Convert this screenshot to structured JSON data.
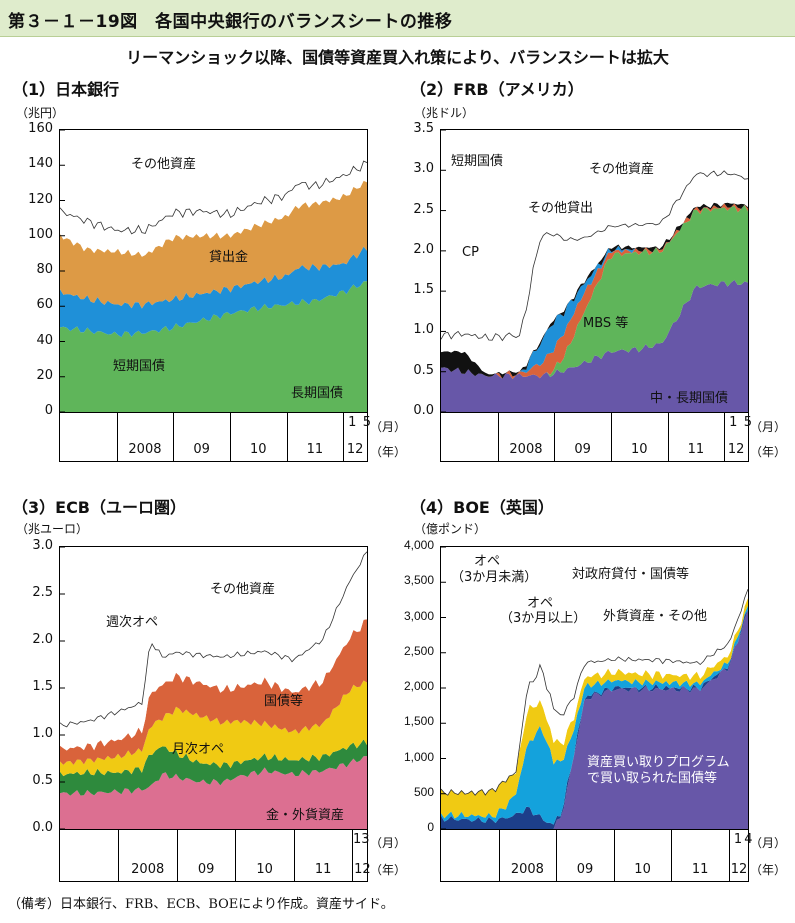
{
  "page": {
    "title": "第３－１－19図　各国中央銀行のバランスシートの推移",
    "subtitle": "リーマンショック以降、国債等資産買入れ策により、バランスシートは拡大",
    "note": "（備考）日本銀行、FRB、ECB、BOEにより作成。資産サイド。"
  },
  "colors": {
    "green": "#5fb55a",
    "blue": "#1f90d8",
    "orange": "#dd9a45",
    "black": "#111111",
    "red": "#d9633b",
    "purple": "#6757a8",
    "yellow": "#f0ca13",
    "dkgreen": "#2e8a3d",
    "pink": "#dc6f91",
    "navy": "#1d3f8a",
    "cyan": "#14a2dc"
  },
  "chart_data": [
    {
      "id": "boj",
      "type": "area",
      "title": "（1）日本銀行",
      "ylabel": "（兆円）",
      "ylim": [
        0,
        160
      ],
      "yticks": [
        "0",
        "20",
        "40",
        "60",
        "80",
        "100",
        "120",
        "140",
        "160"
      ],
      "x_start": 2007.0,
      "x_end": 2012.42,
      "year_labels": [
        "2008",
        "09",
        "10",
        "11",
        "12"
      ],
      "month_labels": [
        "1",
        "5"
      ],
      "month_unit": "（月）",
      "year_unit": "（年）",
      "x": [
        2007.0,
        2007.5,
        2008.0,
        2008.5,
        2009.0,
        2009.5,
        2010.0,
        2010.5,
        2011.0,
        2011.2,
        2011.5,
        2012.0,
        2012.42
      ],
      "series": [
        {
          "name": "長期国債",
          "color": "green",
          "values": [
            48,
            46,
            44,
            45,
            48,
            52,
            56,
            59,
            61,
            62,
            63,
            68,
            74
          ]
        },
        {
          "name": "短期国債",
          "color": "blue",
          "values": [
            20,
            18,
            17,
            16,
            16,
            15,
            14,
            15,
            16,
            20,
            19,
            16,
            19
          ]
        },
        {
          "name": "貸出金",
          "color": "orange",
          "values": [
            32,
            28,
            30,
            28,
            35,
            33,
            30,
            32,
            34,
            35,
            36,
            38,
            38
          ]
        },
        {
          "name": "その他資産",
          "color": "white",
          "values": [
            14,
            16,
            12,
            14,
            14,
            14,
            12,
            13,
            12,
            13,
            10,
            12,
            10
          ]
        }
      ],
      "labels": [
        "その他資産",
        "貸出金",
        "短期国債",
        "長期国債"
      ]
    },
    {
      "id": "frb",
      "type": "area",
      "title": "（2）FRB（アメリカ）",
      "ylabel": "（兆ドル）",
      "ylim": [
        0,
        3.5
      ],
      "yticks": [
        "0.0",
        "0.5",
        "1.0",
        "1.5",
        "2.0",
        "2.5",
        "3.0",
        "3.5"
      ],
      "x_start": 2007.0,
      "x_end": 2012.42,
      "year_labels": [
        "2008",
        "09",
        "10",
        "11",
        "12"
      ],
      "month_labels": [
        "1",
        "5"
      ],
      "month_unit": "（月）",
      "year_unit": "（年）",
      "x": [
        2007.0,
        2007.4,
        2007.8,
        2008.4,
        2008.75,
        2008.95,
        2009.2,
        2009.5,
        2010.0,
        2010.5,
        2010.9,
        2011.5,
        2012.0,
        2012.42
      ],
      "series": [
        {
          "name": "中・長期国債",
          "color": "purple",
          "values": [
            0.55,
            0.5,
            0.45,
            0.45,
            0.45,
            0.47,
            0.52,
            0.6,
            0.75,
            0.78,
            0.85,
            1.55,
            1.6,
            1.6
          ]
        },
        {
          "name": "MBS等",
          "color": "green",
          "values": [
            0,
            0,
            0,
            0,
            0,
            0.02,
            0.2,
            0.6,
            1.2,
            1.2,
            1.15,
            0.95,
            0.93,
            0.92
          ]
        },
        {
          "name": "その他貸出",
          "color": "red",
          "values": [
            0,
            0,
            0,
            0.02,
            0.15,
            0.25,
            0.3,
            0.25,
            0.05,
            0.02,
            0.02,
            0.02,
            0.02,
            0.02
          ]
        },
        {
          "name": "CP",
          "color": "blue",
          "values": [
            0,
            0,
            0,
            0,
            0.25,
            0.35,
            0.25,
            0.12,
            0.02,
            0,
            0,
            0,
            0,
            0
          ]
        },
        {
          "name": "短期国債",
          "color": "black",
          "values": [
            0.2,
            0.25,
            0.02,
            0.02,
            0.02,
            0.02,
            0.02,
            0.03,
            0.03,
            0.03,
            0.03,
            0.03,
            0.03,
            0.03
          ]
        },
        {
          "name": "その他資産",
          "color": "white",
          "values": [
            0.2,
            0.22,
            0.45,
            0.45,
            1.3,
            1.1,
            0.85,
            0.55,
            0.25,
            0.28,
            0.3,
            0.4,
            0.38,
            0.33
          ]
        }
      ],
      "labels": [
        "短期国債",
        "その他資産",
        "その他貸出",
        "CP",
        "MBS 等",
        "中・長期国債"
      ]
    },
    {
      "id": "ecb",
      "type": "area",
      "title": "（3）ECB（ユーロ圏）",
      "ylabel": "（兆ユーロ）",
      "ylim": [
        0,
        3.0
      ],
      "yticks": [
        "0.0",
        "0.5",
        "1.0",
        "1.5",
        "2.0",
        "2.5",
        "3.0"
      ],
      "x_start": 2007.0,
      "x_end": 2012.25,
      "year_labels": [
        "2008",
        "09",
        "10",
        "11",
        "12"
      ],
      "month_labels": [
        "13"
      ],
      "month_unit": "（月）",
      "year_unit": "（年）",
      "x": [
        2007.0,
        2007.5,
        2008.0,
        2008.4,
        2008.55,
        2008.75,
        2009.0,
        2009.4,
        2009.8,
        2010.0,
        2010.5,
        2011.0,
        2011.5,
        2011.95,
        2012.25
      ],
      "series": [
        {
          "name": "金・外貨資産",
          "color": "pink",
          "values": [
            0.38,
            0.38,
            0.4,
            0.42,
            0.45,
            0.58,
            0.55,
            0.5,
            0.5,
            0.55,
            0.62,
            0.58,
            0.62,
            0.7,
            0.77
          ]
        },
        {
          "name": "週次オペ",
          "color": "dkgreen",
          "values": [
            0.2,
            0.22,
            0.2,
            0.22,
            0.35,
            0.3,
            0.25,
            0.2,
            0.18,
            0.15,
            0.15,
            0.15,
            0.15,
            0.18,
            0.15
          ]
        },
        {
          "name": "月次オペ",
          "color": "yellow",
          "values": [
            0.12,
            0.13,
            0.17,
            0.2,
            0.3,
            0.3,
            0.48,
            0.5,
            0.45,
            0.45,
            0.35,
            0.3,
            0.35,
            0.6,
            0.65
          ]
        },
        {
          "name": "国債等",
          "color": "red",
          "values": [
            0.15,
            0.15,
            0.18,
            0.2,
            0.35,
            0.35,
            0.35,
            0.35,
            0.35,
            0.35,
            0.45,
            0.42,
            0.45,
            0.55,
            0.65
          ]
        },
        {
          "name": "その他資産",
          "color": "white",
          "values": [
            0.25,
            0.27,
            0.3,
            0.3,
            0.55,
            0.3,
            0.25,
            0.3,
            0.35,
            0.35,
            0.32,
            0.35,
            0.45,
            0.6,
            0.73
          ]
        }
      ],
      "labels": [
        "その他資産",
        "週次オペ",
        "国債等",
        "月次オペ",
        "金・外貨資産"
      ]
    },
    {
      "id": "boe",
      "type": "area",
      "title": "（4）BOE（英国）",
      "ylabel": "（億ポンド）",
      "ylim": [
        0,
        4000
      ],
      "yticks": [
        "0",
        "500",
        "1,000",
        "1,500",
        "2,000",
        "2,500",
        "3,000",
        "3,500",
        "4,000"
      ],
      "x_start": 2007.0,
      "x_end": 2012.33,
      "year_labels": [
        "2008",
        "09",
        "10",
        "11",
        "12"
      ],
      "month_labels": [
        "1",
        "4"
      ],
      "month_unit": "（月）",
      "year_unit": "（年）",
      "x": [
        2007.0,
        2007.5,
        2007.9,
        2008.1,
        2008.3,
        2008.5,
        2008.75,
        2008.95,
        2009.1,
        2009.3,
        2009.5,
        2010.0,
        2010.5,
        2011.0,
        2011.5,
        2012.0,
        2012.33
      ],
      "series": [
        {
          "name": "資産買い取りプログラムで買い取られた国債等",
          "color": "purple",
          "values": [
            0,
            0,
            0,
            0,
            0,
            0,
            0,
            0,
            200,
            1000,
            1850,
            1980,
            1980,
            1980,
            1980,
            2300,
            3100
          ]
        },
        {
          "name": "オペ（3か月未満）",
          "color": "navy",
          "values": [
            150,
            130,
            120,
            150,
            200,
            300,
            150,
            50,
            50,
            40,
            30,
            20,
            20,
            20,
            20,
            20,
            20
          ]
        },
        {
          "name": "オペ（3か月以上）",
          "color": "cyan",
          "values": [
            50,
            60,
            60,
            150,
            300,
            900,
            1300,
            900,
            700,
            350,
            150,
            100,
            80,
            70,
            60,
            50,
            40
          ]
        },
        {
          "name": "外貨資産・その他",
          "color": "yellow",
          "values": [
            320,
            320,
            360,
            380,
            300,
            500,
            350,
            300,
            250,
            180,
            130,
            120,
            120,
            110,
            110,
            100,
            80
          ]
        },
        {
          "name": "対政府貸付・国債等",
          "color": "white",
          "values": [
            0,
            0,
            0,
            0,
            0,
            300,
            500,
            450,
            400,
            300,
            200,
            180,
            200,
            200,
            180,
            160,
            140
          ]
        }
      ],
      "labels": [
        "オペ",
        "（3か月未満）",
        "対政府貸付・国債等",
        "オペ",
        "（3か月以上）",
        "外貨資産・その他",
        "資産買い取りプログラム",
        "で買い取られた国債等"
      ]
    }
  ]
}
